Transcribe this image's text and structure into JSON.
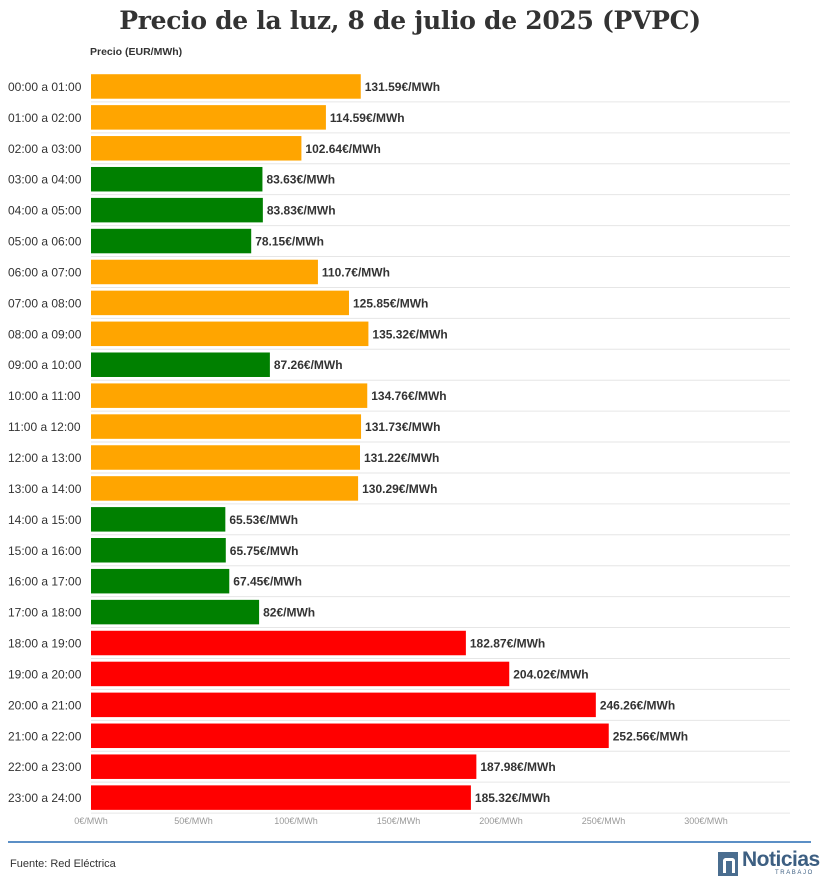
{
  "title": "Precio de la luz, 8 de julio de 2025 (PVPC)",
  "unit_label": "Precio (EUR/MWh)",
  "source": "Fuente: Red Eléctrica",
  "logo": {
    "word": "Noticias",
    "sub": "TRABAJO"
  },
  "colors": {
    "low": "#008000",
    "mid": "#ffa500",
    "high": "#ff0000",
    "grid": "#e6e6e6",
    "rule": "#5b8fc6"
  },
  "chart_data": {
    "type": "bar",
    "orientation": "horizontal",
    "title": "Precio de la luz, 8 de julio de 2025 (PVPC)",
    "xlabel": "Precio (EUR/MWh)",
    "xlim": [
      0,
      300
    ],
    "x_ticks": [
      "0€/MWh",
      "50€/MWh",
      "100€/MWh",
      "150€/MWh",
      "200€/MWh",
      "250€/MWh",
      "300€/MWh"
    ],
    "x_tick_values": [
      0,
      50,
      100,
      150,
      200,
      250,
      300
    ],
    "grid": true,
    "categories": [
      "00:00 a 01:00",
      "01:00 a 02:00",
      "02:00 a 03:00",
      "03:00 a 04:00",
      "04:00 a 05:00",
      "05:00 a 06:00",
      "06:00 a 07:00",
      "07:00 a 08:00",
      "08:00 a 09:00",
      "09:00 a 10:00",
      "10:00 a 11:00",
      "11:00 a 12:00",
      "12:00 a 13:00",
      "13:00 a 14:00",
      "14:00 a 15:00",
      "15:00 a 16:00",
      "16:00 a 17:00",
      "17:00 a 18:00",
      "18:00 a 19:00",
      "19:00 a 20:00",
      "20:00 a 21:00",
      "21:00 a 22:00",
      "22:00 a 23:00",
      "23:00 a 24:00"
    ],
    "values": [
      131.59,
      114.59,
      102.64,
      83.63,
      83.83,
      78.15,
      110.7,
      125.85,
      135.32,
      87.26,
      134.76,
      131.73,
      131.22,
      130.29,
      65.53,
      65.75,
      67.45,
      82,
      182.87,
      204.02,
      246.26,
      252.56,
      187.98,
      185.32
    ],
    "value_labels": [
      "131.59€/MWh",
      "114.59€/MWh",
      "102.64€/MWh",
      "83.63€/MWh",
      "83.83€/MWh",
      "78.15€/MWh",
      "110.7€/MWh",
      "125.85€/MWh",
      "135.32€/MWh",
      "87.26€/MWh",
      "134.76€/MWh",
      "131.73€/MWh",
      "131.22€/MWh",
      "130.29€/MWh",
      "65.53€/MWh",
      "65.75€/MWh",
      "67.45€/MWh",
      "82€/MWh",
      "182.87€/MWh",
      "204.02€/MWh",
      "246.26€/MWh",
      "252.56€/MWh",
      "187.98€/MWh",
      "185.32€/MWh"
    ],
    "bar_colors": [
      "mid",
      "mid",
      "mid",
      "low",
      "low",
      "low",
      "mid",
      "mid",
      "mid",
      "low",
      "mid",
      "mid",
      "mid",
      "mid",
      "low",
      "low",
      "low",
      "low",
      "high",
      "high",
      "high",
      "high",
      "high",
      "high"
    ]
  }
}
